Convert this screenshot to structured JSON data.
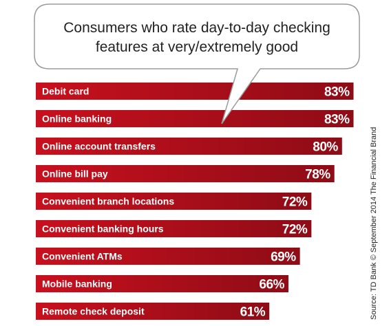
{
  "chart_data": {
    "type": "bar",
    "orientation": "horizontal",
    "title_lines": [
      "Consumers who rate day-to-day checking",
      "features at very/extremely good"
    ],
    "categories": [
      "Debit card",
      "Online banking",
      "Online account transfers",
      "Online bill pay",
      "Convenient branch locations",
      "Convenient banking hours",
      "Convenient ATMs",
      "Mobile banking",
      "Remote check deposit"
    ],
    "values": [
      83,
      83,
      80,
      78,
      72,
      72,
      69,
      66,
      61
    ],
    "value_labels": [
      "83%",
      "83%",
      "80%",
      "78%",
      "72%",
      "72%",
      "69%",
      "66%",
      "61%"
    ],
    "xlim": [
      0,
      100
    ],
    "grid": false,
    "legend": "none",
    "source": "Source: TD Bank © September 2014 The Financial Brand",
    "colors": {
      "bar_light": "#c8101e",
      "bar_dark": "#8e0c16",
      "bubble_border": "#9a9a9a"
    }
  }
}
